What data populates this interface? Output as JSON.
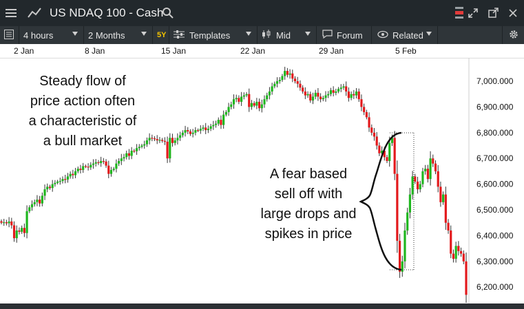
{
  "window": {
    "title": "US NDAQ 100 - Cash",
    "icons": [
      "list-icon",
      "chart-line-icon",
      "search-icon",
      "scroll-icon",
      "expand-icon",
      "popout-icon",
      "close-icon"
    ]
  },
  "toolbar": {
    "interval": "4 hours",
    "range": "2 Months",
    "badge": "5Y",
    "templates": "Templates",
    "price_type": "Mid",
    "forum": "Forum",
    "related": "Related"
  },
  "date_axis": [
    "2 Jan",
    "8 Jan",
    "15 Jan",
    "22 Jan",
    "29 Jan",
    "5 Feb"
  ],
  "annotations": {
    "left": [
      "Steady flow of",
      "price action often",
      "a characteristic of",
      "a bull market"
    ],
    "right": [
      "A fear based",
      "sell off with",
      "large drops and",
      "spikes in price"
    ]
  },
  "colors": {
    "up": "#1fb71f",
    "down": "#e3191c",
    "titlebar": "#22282c",
    "toolbar": "#2f3539"
  },
  "chart_data": {
    "type": "candlestick",
    "ylim": [
      6150,
      7050
    ],
    "y_ticks": [
      "7,000.000",
      "6,900.000",
      "6,800.000",
      "6,700.000",
      "6,600.000",
      "6,500.000",
      "6,400.000",
      "6,300.000",
      "6,200.000"
    ],
    "x_labels": [
      "2 Jan",
      "8 Jan",
      "15 Jan",
      "22 Jan",
      "29 Jan",
      "5 Feb"
    ],
    "close": [
      6450,
      6452,
      6448,
      6455,
      6440,
      6390,
      6420,
      6415,
      6430,
      6410,
      6495,
      6510,
      6522,
      6530,
      6540,
      6525,
      6555,
      6580,
      6590,
      6585,
      6600,
      6605,
      6610,
      6612,
      6620,
      6618,
      6630,
      6640,
      6635,
      6650,
      6660,
      6655,
      6670,
      6668,
      6665,
      6675,
      6680,
      6685,
      6682,
      6690,
      6688,
      6672,
      6640,
      6655,
      6660,
      6680,
      6690,
      6700,
      6705,
      6720,
      6710,
      6730,
      6728,
      6740,
      6745,
      6750,
      6755,
      6770,
      6780,
      6778,
      6775,
      6770,
      6772,
      6768,
      6765,
      6700,
      6780,
      6760,
      6770,
      6780,
      6790,
      6800,
      6810,
      6805,
      6795,
      6800,
      6810,
      6808,
      6815,
      6820,
      6810,
      6815,
      6825,
      6830,
      6835,
      6850,
      6830,
      6870,
      6880,
      6900,
      6910,
      6930,
      6935,
      6920,
      6940,
      6945,
      6950,
      6900,
      6915,
      6905,
      6920,
      6895,
      6910,
      6930,
      6945,
      6960,
      6980,
      6990,
      7000,
      7005,
      7020,
      7040,
      7025,
      7030,
      7010,
      7000,
      6990,
      6975,
      6960,
      6945,
      6950,
      6925,
      6940,
      6955,
      6940,
      6930,
      6935,
      6945,
      6950,
      6965,
      6955,
      6960,
      6970,
      6975,
      6980,
      6960,
      6935,
      6950,
      6945,
      6960,
      6930,
      6900,
      6880,
      6860,
      6820,
      6800,
      6785,
      6750,
      6720,
      6730,
      6705,
      6690,
      6760,
      6780,
      6640,
      6380,
      6260,
      6300,
      6420,
      6490,
      6560,
      6630,
      6610,
      6580,
      6600,
      6650,
      6660,
      6620,
      6700,
      6680,
      6650,
      6590,
      6530,
      6560,
      6450,
      6420,
      6330,
      6310,
      6360,
      6340,
      6330,
      6300,
      6170
    ],
    "titles": {
      "chart": "",
      "x": "",
      "y": ""
    }
  }
}
